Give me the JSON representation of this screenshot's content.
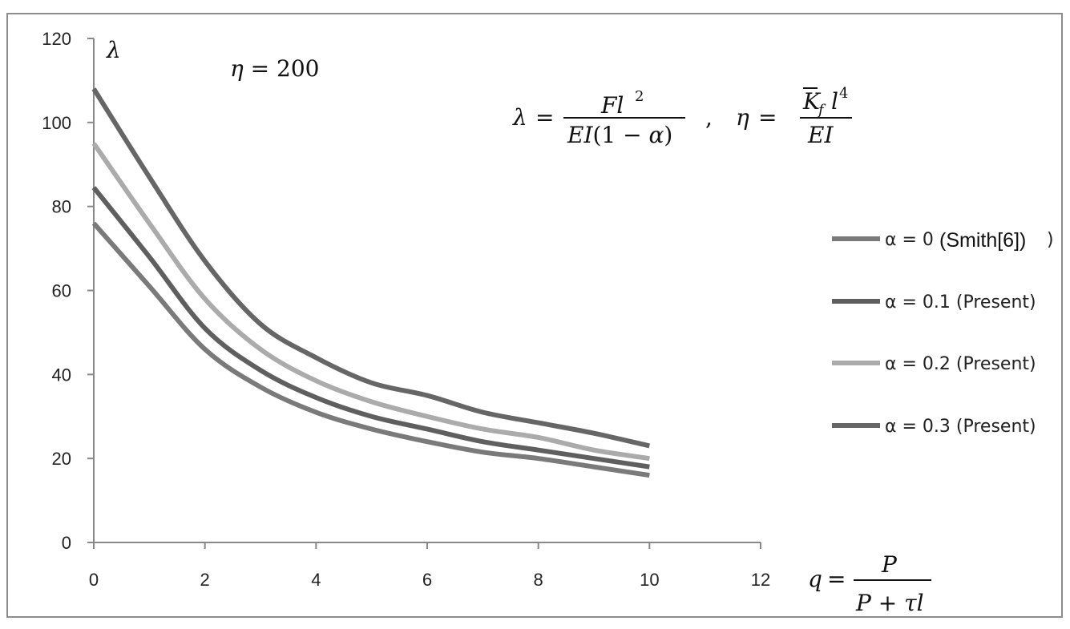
{
  "chart_data": {
    "type": "line",
    "title": "",
    "xlabel": "",
    "ylabel": "λ",
    "xlim": [
      0,
      12
    ],
    "ylim": [
      0,
      120
    ],
    "x_ticks": [
      "0",
      "2",
      "4",
      "6",
      "8",
      "10",
      "12"
    ],
    "y_ticks": [
      "0",
      "20",
      "40",
      "60",
      "80",
      "100",
      "120"
    ],
    "grid": false,
    "legend_position": "right",
    "annotations": {
      "eta_value": "η = 200",
      "lambda_def": "λ = Fl² / (EI(1 − α))",
      "eta_def": "η = K̄_f l⁴ / EI",
      "q_def": "q = P / (P + τl)"
    },
    "series": [
      {
        "name": "α = 0 (Smith[6])",
        "color": "#7a7a7a",
        "x": [
          0,
          1,
          2,
          3,
          4,
          5,
          6,
          7,
          8,
          9,
          10
        ],
        "y": [
          76,
          61,
          46,
          37,
          31,
          27,
          24,
          21.5,
          20,
          18,
          16
        ]
      },
      {
        "name": "α = 0.1 (Present)",
        "color": "#5f5f5f",
        "x": [
          0,
          1,
          2,
          3,
          4,
          5,
          6,
          7,
          8,
          9,
          10
        ],
        "y": [
          84.5,
          68,
          51,
          41,
          34.5,
          30,
          27,
          24,
          22,
          20,
          18
        ]
      },
      {
        "name": "α = 0.2 (Present)",
        "color": "#ababab",
        "x": [
          0,
          1,
          2,
          3,
          4,
          5,
          6,
          7,
          8,
          9,
          10
        ],
        "y": [
          95,
          76,
          58,
          46,
          38.5,
          33.5,
          30,
          27,
          25,
          22,
          20
        ]
      },
      {
        "name": "α = 0.3 (Present)",
        "color": "#666666",
        "x": [
          0,
          1,
          2,
          3,
          4,
          5,
          6,
          7,
          8,
          9,
          10
        ],
        "y": [
          108,
          87,
          67,
          52,
          44,
          38,
          35,
          31,
          28.5,
          26,
          23
        ]
      }
    ]
  }
}
